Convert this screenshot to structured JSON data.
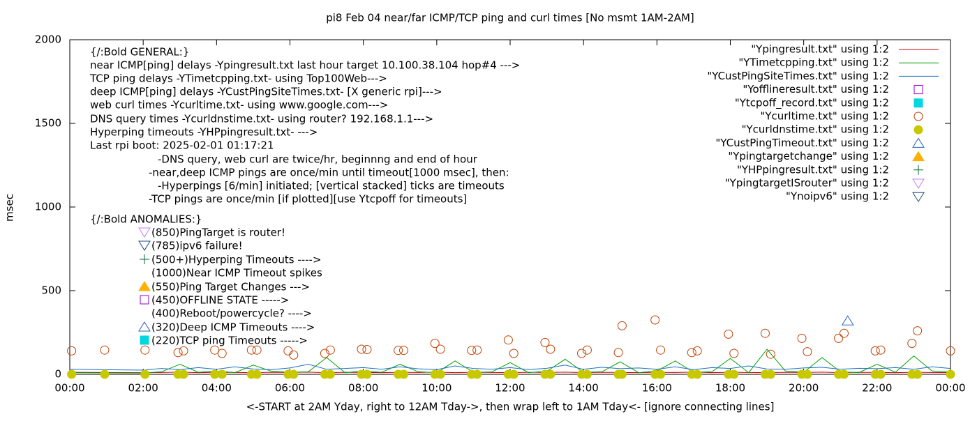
{
  "chart_data": {
    "type": "line",
    "title": "pi8 Feb 04  near/far ICMP/TCP ping and curl times [No msmt 1AM-2AM]",
    "x_label": "<-START at 2AM Yday, right to 12AM Tday->, then wrap left to 1AM Tday<- [ignore connecting lines]",
    "y_label": "msec",
    "xlim": [
      0,
      24
    ],
    "ylim": [
      0,
      2000
    ],
    "xticks": [
      {
        "value": 0,
        "label": "00:00"
      },
      {
        "value": 2,
        "label": "02:00"
      },
      {
        "value": 4,
        "label": "04:00"
      },
      {
        "value": 6,
        "label": "06:00"
      },
      {
        "value": 8,
        "label": "08:00"
      },
      {
        "value": 10,
        "label": "10:00"
      },
      {
        "value": 12,
        "label": "12:00"
      },
      {
        "value": 14,
        "label": "14:00"
      },
      {
        "value": 16,
        "label": "16:00"
      },
      {
        "value": 18,
        "label": "18:00"
      },
      {
        "value": 20,
        "label": "20:00"
      },
      {
        "value": 22,
        "label": "22:00"
      },
      {
        "value": 24,
        "label": "00:00"
      }
    ],
    "yticks": [
      0,
      500,
      1000,
      1500,
      2000
    ],
    "grid": false,
    "legend_position": "top-right",
    "annotations": [
      "{/:Bold GENERAL:}",
      "near ICMP[ping] delays -Ypingresult.txt last hour target 10.100.38.104 hop#4 --->",
      "TCP ping delays -YTimetcpping.txt- using Top100Web--->",
      "deep ICMP[ping] delays -YCustPingSiteTimes.txt- [X generic rpi]--->",
      "web curl times -Ycurltime.txt- using www.google.com--->",
      "DNS query times -Ycurldnstime.txt- using router? 192.168.1.1--->",
      "Hyperping timeouts -YHPpingresult.txt- --->",
      "Last rpi boot: 2025-02-01 01:17:21",
      "-DNS query, web curl are twice/hr, beginnng and end of hour",
      "-near,deep ICMP pings are once/min until timeout[1000 msec], then:",
      "-Hyperpings [6/min] initiated; [vertical stacked] ticks are timeouts",
      "-TCP pings are once/min [if plotted][use Ytcpoff for timeouts]",
      "{/:Bold ANOMALIES:}",
      "(850)PingTarget is router!",
      "(785)ipv6 failure!",
      "(500+)Hyperping Timeouts ---->",
      "(1000)Near ICMP Timeout spikes",
      "(550)Ping Target Changes --->",
      "(450)OFFLINE STATE ----->",
      "(400)Reboot/powercycle? ---->",
      "(320)Deep ICMP Timeouts ---->",
      "(220)TCP ping Timeouts ----->"
    ],
    "series": [
      {
        "name": "\"Ypingresult.txt\" using 1:2",
        "color": "#cc0000",
        "marker": "line",
        "x": [
          0,
          2,
          2.5,
          3,
          3.5,
          4,
          4.5,
          5,
          5.5,
          6,
          6.5,
          7,
          7.5,
          8,
          8.5,
          9,
          9.5,
          10,
          10.5,
          11,
          11.5,
          12,
          12.5,
          13,
          13.5,
          14,
          14.5,
          15,
          15.5,
          16,
          16.5,
          17,
          17.5,
          18,
          18.5,
          19,
          19.5,
          20,
          20.5,
          21,
          21.5,
          22,
          22.5,
          23,
          23.5,
          24
        ],
        "values": [
          12,
          10,
          11,
          13,
          10,
          12,
          11,
          10,
          12,
          11,
          13,
          10,
          12,
          11,
          10,
          12,
          11,
          13,
          10,
          12,
          11,
          10,
          12,
          11,
          13,
          10,
          12,
          11,
          10,
          12,
          11,
          13,
          10,
          12,
          11,
          10,
          12,
          11,
          13,
          10,
          12,
          11,
          10,
          12,
          11,
          10
        ]
      },
      {
        "name": "\"YTimetcpping.txt\" using 1:2",
        "color": "#00a000",
        "marker": "line",
        "x": [
          0,
          2,
          2.5,
          3,
          3.5,
          4,
          4.5,
          5,
          5.5,
          6,
          6.5,
          7,
          7.5,
          8,
          8.5,
          9,
          9.5,
          10,
          10.5,
          11,
          11.5,
          12,
          12.5,
          13,
          13.5,
          14,
          14.5,
          15,
          15.5,
          16,
          16.5,
          17,
          17.5,
          18,
          18.5,
          19,
          19.5,
          20,
          20.5,
          21,
          21.5,
          22,
          22.5,
          23,
          23.5,
          24
        ],
        "values": [
          10,
          8,
          15,
          60,
          12,
          20,
          10,
          55,
          18,
          12,
          15,
          100,
          10,
          20,
          12,
          60,
          15,
          10,
          80,
          12,
          14,
          70,
          10,
          18,
          90,
          12,
          15,
          75,
          10,
          20,
          80,
          12,
          15,
          95,
          10,
          150,
          20,
          12,
          100,
          15,
          10,
          60,
          12,
          110,
          20,
          15
        ]
      },
      {
        "name": "\"YCustPingSiteTimes.txt\" using 1:2",
        "color": "#1c6fc4",
        "marker": "line",
        "x": [
          0,
          2,
          2.5,
          3,
          3.5,
          4,
          4.5,
          5,
          5.5,
          6,
          6.5,
          7,
          7.5,
          8,
          8.5,
          9,
          9.5,
          10,
          10.5,
          11,
          11.5,
          12,
          12.5,
          13,
          13.5,
          14,
          14.5,
          15,
          15.5,
          16,
          16.5,
          17,
          17.5,
          18,
          18.5,
          19,
          19.5,
          20,
          20.5,
          21,
          21.5,
          22,
          22.5,
          23,
          23.5,
          24
        ],
        "values": [
          30,
          25,
          35,
          28,
          40,
          30,
          45,
          32,
          28,
          38,
          60,
          30,
          35,
          40,
          30,
          45,
          33,
          28,
          50,
          35,
          30,
          40,
          28,
          36,
          55,
          30,
          42,
          34,
          38,
          30,
          45,
          28,
          40,
          35,
          50,
          32,
          30,
          38,
          42,
          30,
          36,
          34,
          40,
          30,
          45,
          35
        ]
      },
      {
        "name": "\"Yofflineresult.txt\" using 1:2",
        "color": "#9400d3",
        "marker": "square",
        "x": [],
        "values": []
      },
      {
        "name": "\"Ytcpoff_record.txt\" using 1:2",
        "color": "#00d8e0",
        "marker": "filled-square",
        "x": [],
        "values": []
      },
      {
        "name": "\"Ycurltime.txt\" using 1:2",
        "color": "#c04000",
        "marker": "circle",
        "x": [
          0.05,
          0.95,
          2.05,
          2.95,
          3.1,
          3.95,
          4.15,
          4.95,
          5.1,
          5.95,
          6.1,
          6.95,
          7.1,
          7.95,
          8.1,
          8.95,
          9.1,
          9.95,
          10.1,
          10.95,
          11.1,
          11.95,
          12.1,
          12.95,
          13.1,
          13.95,
          14.1,
          14.95,
          15.05,
          15.95,
          16.1,
          16.95,
          17.1,
          17.95,
          18.1,
          18.95,
          19.1,
          19.95,
          20.1,
          20.95,
          21.1,
          21.95,
          22.1,
          22.95,
          23.1,
          24
        ],
        "values": [
          140,
          145,
          145,
          130,
          140,
          145,
          125,
          145,
          145,
          140,
          115,
          125,
          145,
          150,
          148,
          143,
          143,
          185,
          150,
          143,
          145,
          205,
          125,
          190,
          150,
          125,
          145,
          130,
          290,
          325,
          145,
          130,
          140,
          240,
          125,
          245,
          120,
          215,
          135,
          215,
          245,
          140,
          145,
          185,
          260,
          140
        ]
      },
      {
        "name": "\"Ycurldnstime.txt\" using 1:2",
        "color": "#c8c800",
        "marker": "filled-circle",
        "x": [
          0.05,
          0.95,
          2.05,
          2.95,
          3.1,
          3.95,
          4.15,
          4.95,
          5.1,
          5.95,
          6.1,
          6.95,
          7.1,
          7.95,
          8.1,
          8.95,
          9.1,
          9.95,
          10.1,
          10.95,
          11.1,
          11.95,
          12.1,
          12.95,
          13.1,
          13.95,
          14.1,
          14.95,
          15.05,
          15.95,
          16.1,
          16.95,
          17.1,
          17.95,
          18.1,
          18.95,
          19.1,
          19.95,
          20.1,
          20.95,
          21.1,
          21.95,
          22.1,
          22.95,
          23.1,
          24
        ],
        "values": [
          0,
          0,
          0,
          0,
          0,
          0,
          0,
          0,
          0,
          0,
          0,
          0,
          0,
          0,
          0,
          0,
          0,
          0,
          0,
          0,
          0,
          0,
          0,
          0,
          0,
          0,
          0,
          0,
          0,
          0,
          0,
          0,
          0,
          0,
          0,
          0,
          0,
          0,
          0,
          0,
          0,
          0,
          0,
          0,
          0,
          0
        ]
      },
      {
        "name": "\"YCustPingTimeout.txt\" using 1:2",
        "color": "#2060c0",
        "marker": "triangle-up",
        "x": [
          21.2
        ],
        "values": [
          320
        ]
      },
      {
        "name": "\"Ypingtargetchange\" using 1:2",
        "color": "#ffb000",
        "marker": "filled-triangle-up",
        "x": [],
        "values": []
      },
      {
        "name": "\"YHPpingresult.txt\" using 1:2",
        "color": "#006a30",
        "marker": "plus",
        "x": [],
        "values": []
      },
      {
        "name": "\"YpingtargetISrouter\" using 1:2",
        "color": "#c080ff",
        "marker": "triangle-down",
        "x": [],
        "values": []
      },
      {
        "name": "\"Ynoipv6\" using 1:2",
        "color": "#204a80",
        "marker": "triangle-down",
        "x": [],
        "values": []
      }
    ]
  }
}
